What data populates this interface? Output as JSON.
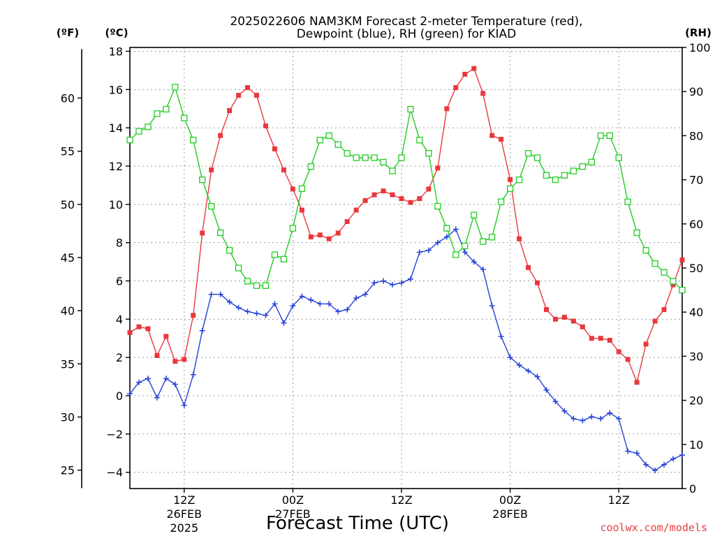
{
  "title_line1": "2025022606 NAM3KM Forecast 2-meter Temperature (red),",
  "title_line2": "Dewpoint (blue), RH (green) for KIAD",
  "unit_f": "(ºF)",
  "unit_c": "(ºC)",
  "unit_rh": "(RH)",
  "xlabel": "Forecast Time (UTC)",
  "credit": "coolwx.com/models",
  "colors": {
    "temperature": "#e8383d",
    "dewpoint": "#2440d8",
    "rh": "#22cc22",
    "grid": "#9a9a9a",
    "credit": "#e83c3c"
  },
  "chart_data": {
    "type": "line",
    "x_unit": "hours since 2025-02-26 06Z",
    "xlim": [
      0,
      61
    ],
    "ylim_c": [
      -4.85,
      18.2
    ],
    "ylim_rh": [
      0,
      100
    ],
    "grid": true,
    "x_ticks": [
      {
        "x": 6,
        "label": "12Z",
        "date": "26FEB",
        "year": "2025"
      },
      {
        "x": 18,
        "label": "00Z",
        "date": "27FEB",
        "year": ""
      },
      {
        "x": 30,
        "label": "12Z",
        "date": "",
        "year": ""
      },
      {
        "x": 42,
        "label": "00Z",
        "date": "28FEB",
        "year": ""
      },
      {
        "x": 54,
        "label": "12Z",
        "date": "",
        "year": ""
      }
    ],
    "y_ticks_c": [
      18,
      16,
      14,
      12,
      10,
      8,
      6,
      4,
      2,
      0,
      -2,
      -4
    ],
    "y_ticks_f": [
      60,
      55,
      50,
      45,
      40,
      35,
      30,
      25
    ],
    "y_ticks_rh": [
      100,
      90,
      80,
      70,
      60,
      50,
      40,
      30,
      20,
      10,
      0
    ],
    "series": [
      {
        "name": "Temperature",
        "axis": "c",
        "marker": "filled-square",
        "x": [
          0,
          1,
          2,
          3,
          4,
          5,
          6,
          7,
          8,
          9,
          10,
          11,
          12,
          13,
          14,
          15,
          16,
          17,
          18,
          19,
          20,
          21,
          22,
          23,
          24,
          25,
          26,
          27,
          28,
          29,
          30,
          31,
          32,
          33,
          34,
          35,
          36,
          37,
          38,
          39,
          40,
          41,
          42,
          43,
          44,
          45,
          46,
          47,
          48,
          49,
          50,
          51,
          52,
          53,
          54,
          55,
          56,
          57,
          58,
          59,
          60,
          61
        ],
        "values": [
          3.3,
          3.6,
          3.5,
          2.1,
          3.1,
          1.8,
          1.9,
          4.2,
          8.5,
          11.8,
          13.6,
          14.9,
          15.7,
          16.1,
          15.7,
          14.1,
          12.9,
          11.8,
          10.8,
          9.7,
          8.3,
          8.4,
          8.2,
          8.5,
          9.1,
          9.7,
          10.2,
          10.5,
          10.7,
          10.5,
          10.3,
          10.1,
          10.3,
          10.8,
          11.9,
          15.0,
          16.1,
          16.8,
          17.1,
          15.8,
          13.6,
          13.4,
          11.3,
          8.2,
          6.7,
          5.9,
          4.5,
          4.0,
          4.1,
          3.9,
          3.6,
          3.0,
          3.0,
          2.9,
          2.3,
          1.9,
          0.7,
          2.7,
          3.9,
          4.5,
          5.8,
          7.1
        ]
      },
      {
        "name": "Dewpoint",
        "axis": "c",
        "marker": "plus",
        "x": [
          0,
          1,
          2,
          3,
          4,
          5,
          6,
          7,
          8,
          9,
          10,
          11,
          12,
          13,
          14,
          15,
          16,
          17,
          18,
          19,
          20,
          21,
          22,
          23,
          24,
          25,
          26,
          27,
          28,
          29,
          30,
          31,
          32,
          33,
          34,
          35,
          36,
          37,
          38,
          39,
          40,
          41,
          42,
          43,
          44,
          45,
          46,
          47,
          48,
          49,
          50,
          51,
          52,
          53,
          54,
          55,
          56,
          57,
          58,
          59,
          60,
          61
        ],
        "values": [
          0.1,
          0.7,
          0.9,
          -0.1,
          0.9,
          0.6,
          -0.5,
          1.1,
          3.4,
          5.3,
          5.3,
          4.9,
          4.6,
          4.4,
          4.3,
          4.2,
          4.8,
          3.8,
          4.7,
          5.2,
          5.0,
          4.8,
          4.8,
          4.4,
          4.5,
          5.1,
          5.3,
          5.9,
          6.0,
          5.8,
          5.9,
          6.1,
          7.5,
          7.6,
          8.0,
          8.3,
          8.7,
          7.5,
          7.0,
          6.6,
          4.7,
          3.1,
          2.0,
          1.6,
          1.3,
          1.0,
          0.3,
          -0.3,
          -0.8,
          -1.2,
          -1.3,
          -1.1,
          -1.2,
          -0.9,
          -1.2,
          -2.9,
          -3.0,
          -3.6,
          -3.9,
          -3.6,
          -3.3,
          -3.1
        ]
      },
      {
        "name": "RH",
        "axis": "rh",
        "marker": "open-square",
        "x": [
          0,
          1,
          2,
          3,
          4,
          5,
          6,
          7,
          8,
          9,
          10,
          11,
          12,
          13,
          14,
          15,
          16,
          17,
          18,
          19,
          20,
          21,
          22,
          23,
          24,
          25,
          26,
          27,
          28,
          29,
          30,
          31,
          32,
          33,
          34,
          35,
          36,
          37,
          38,
          39,
          40,
          41,
          42,
          43,
          44,
          45,
          46,
          47,
          48,
          49,
          50,
          51,
          52,
          53,
          54,
          55,
          56,
          57,
          58,
          59,
          60,
          61
        ],
        "values": [
          79,
          81,
          82,
          85,
          86,
          91,
          84,
          79,
          70,
          64,
          58,
          54,
          50,
          47,
          46,
          46,
          53,
          52,
          59,
          68,
          73,
          79,
          80,
          78,
          76,
          75,
          75,
          75,
          74,
          72,
          75,
          86,
          79,
          76,
          64,
          59,
          53,
          55,
          62,
          56,
          57,
          65,
          68,
          70,
          76,
          75,
          71,
          70,
          71,
          72,
          73,
          74,
          80,
          80,
          75,
          65,
          58,
          54,
          51,
          49,
          47,
          45
        ]
      }
    ]
  }
}
